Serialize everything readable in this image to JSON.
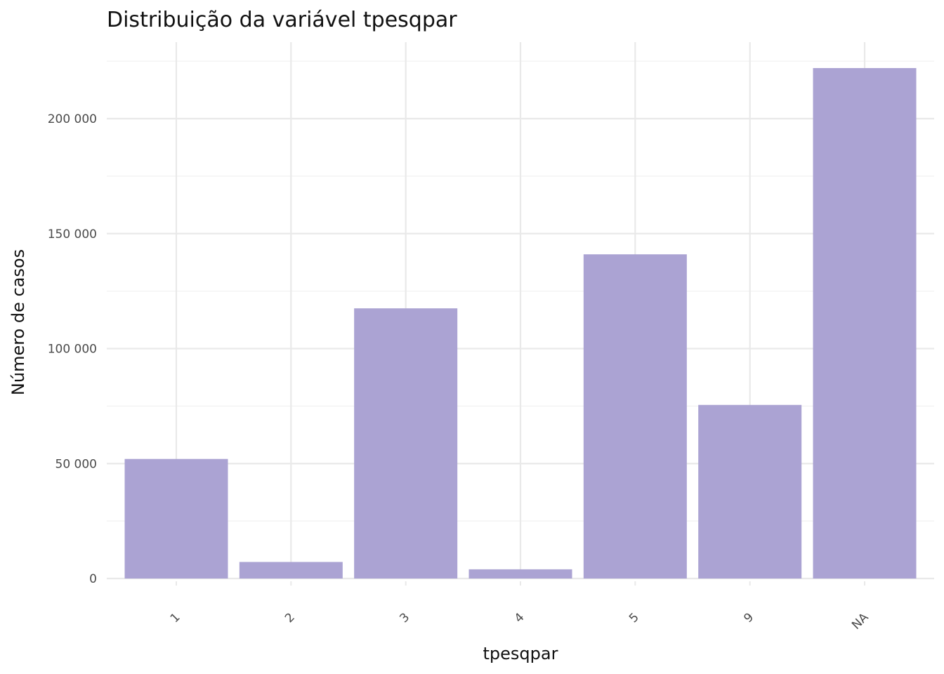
{
  "chart_data": {
    "type": "bar",
    "title": "Distribuição da variável  tpesqpar",
    "xlabel": "tpesqpar",
    "ylabel": "Número de casos",
    "categories": [
      "1",
      "2",
      "3",
      "4",
      "5",
      "9",
      "NA"
    ],
    "values": [
      52000,
      7200,
      117500,
      4000,
      141000,
      75500,
      222000
    ],
    "ylim": [
      0,
      225000
    ],
    "y_ticks": [
      0,
      50000,
      100000,
      150000,
      200000
    ],
    "y_tick_labels": [
      "0",
      "50 000",
      "100 000",
      "150 000",
      "200 000"
    ],
    "grid": true,
    "legend": "none",
    "bar_color": "#ABA3D3"
  }
}
